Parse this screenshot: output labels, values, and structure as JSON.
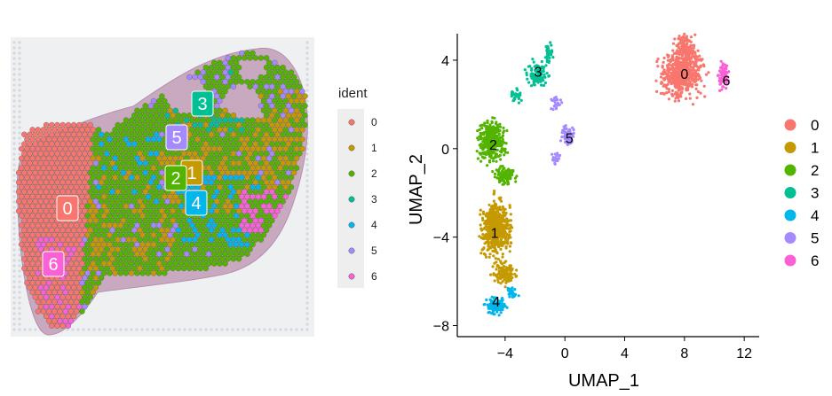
{
  "colors": {
    "0": "#F8766D",
    "1": "#C49A00",
    "2": "#53B400",
    "3": "#00C094",
    "4": "#00B6EB",
    "5": "#A58AFF",
    "6": "#FB61D7",
    "tissue_background": "#c9a9c0",
    "tissue_dark": "#8e5f8a"
  },
  "chart_data": [
    {
      "type": "scatter",
      "panel": "spatial",
      "legend": {
        "title": "ident",
        "placement": "right",
        "entries": [
          "0",
          "1",
          "2",
          "3",
          "4",
          "5",
          "6"
        ]
      },
      "cluster_labels": [
        "0",
        "1",
        "2",
        "3",
        "4",
        "5",
        "6"
      ]
    },
    {
      "type": "scatter",
      "panel": "umap",
      "xlabel": "UMAP_1",
      "ylabel": "UMAP_2",
      "xlim": [
        -7.2,
        13
      ],
      "ylim": [
        -8.5,
        5.2
      ],
      "x_ticks": [
        -4,
        0,
        4,
        8,
        12
      ],
      "x_tick_labels": [
        "−4",
        "0",
        "4",
        "8",
        "12"
      ],
      "y_ticks": [
        -8,
        -4,
        0,
        4
      ],
      "y_tick_labels": [
        "−8",
        "−4",
        "0",
        "4"
      ],
      "grid": false,
      "legend": {
        "placement": "right",
        "entries": [
          "0",
          "1",
          "2",
          "3",
          "4",
          "5",
          "6"
        ]
      },
      "cluster_centers": [
        {
          "cluster": "0",
          "x": 8.0,
          "y": 3.4
        },
        {
          "cluster": "1",
          "x": -4.7,
          "y": -3.8
        },
        {
          "cluster": "2",
          "x": -4.8,
          "y": 0.2
        },
        {
          "cluster": "3",
          "x": -1.8,
          "y": 3.5
        },
        {
          "cluster": "4",
          "x": -4.6,
          "y": -6.9
        },
        {
          "cluster": "5",
          "x": 0.3,
          "y": 0.5
        },
        {
          "cluster": "6",
          "x": 10.8,
          "y": 3.1
        }
      ]
    }
  ]
}
